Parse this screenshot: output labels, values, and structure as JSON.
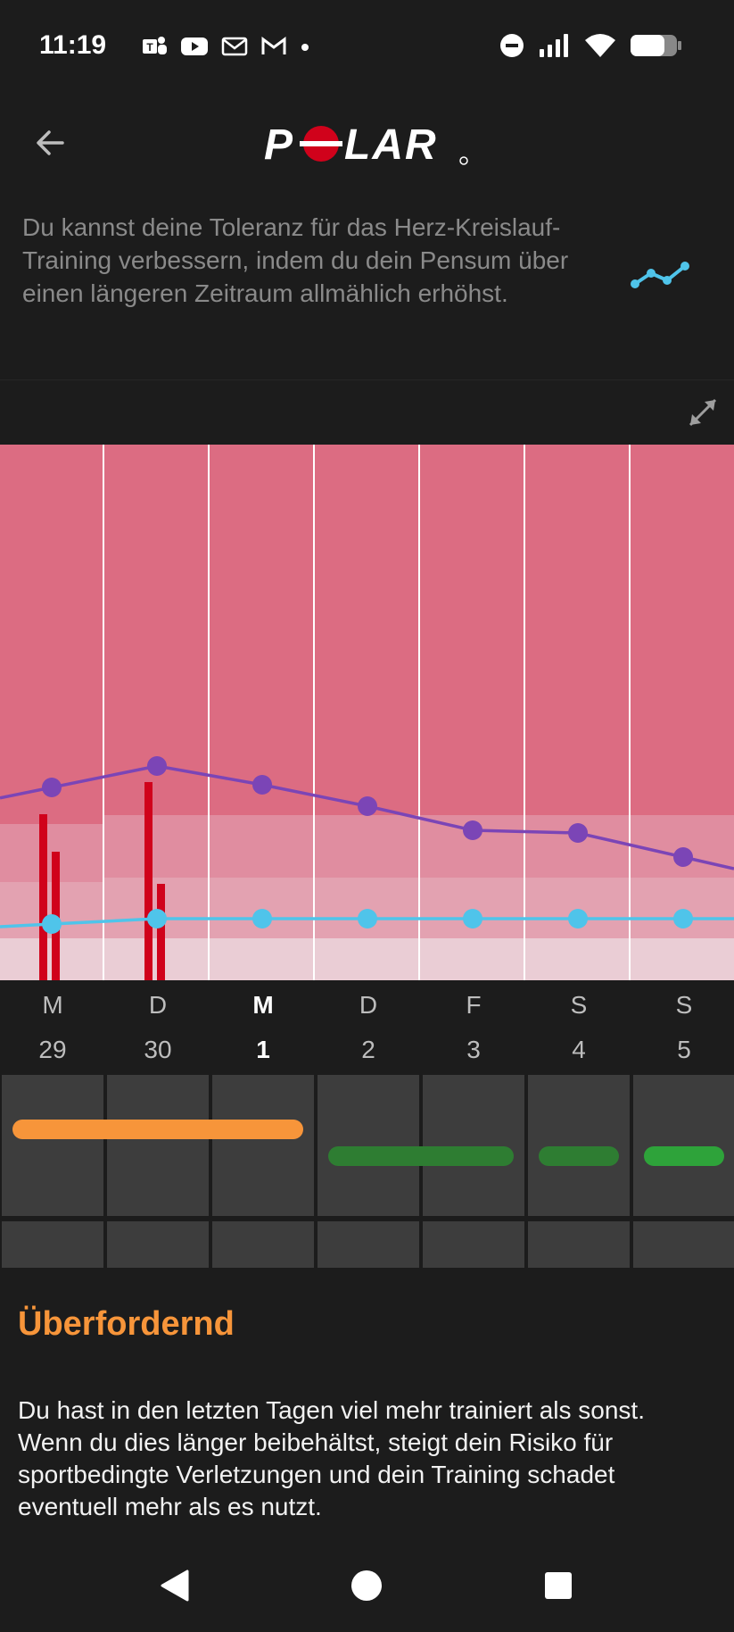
{
  "status_bar": {
    "time": "11:19",
    "left_icons": [
      "teams-icon",
      "youtube-icon",
      "mail-icon",
      "gmail-icon",
      "dot-icon"
    ],
    "right_icons": [
      "do-not-disturb-icon",
      "signal-icon",
      "wifi-icon",
      "battery-icon"
    ]
  },
  "header": {
    "logo_text": "POLAR",
    "back_icon": "arrow-left-icon"
  },
  "info": {
    "text": "Du kannst deine Toleranz für das Herz-Kreislauf-Training verbessern, indem du dein Pensum über einen längeren Zeitraum allmählich erhöhst.",
    "trend_icon": "trend-line-icon",
    "expand_icon": "expand-icon"
  },
  "colors": {
    "accent_orange": "#f7953a",
    "zone_high": "#dc6c82",
    "zone_mid": "#e08da0",
    "zone_low": "#eacdd5",
    "purple_line": "#7b45b6",
    "cyan_line": "#4fc4ea",
    "red_bars": "#d0021b",
    "bar_green_dark": "#2e7d32",
    "bar_green": "#2ea33a"
  },
  "chart_data": {
    "type": "line",
    "categories": [
      "M 29",
      "D 30",
      "M 1",
      "D 2",
      "F 3",
      "S 4",
      "S 5"
    ],
    "series": [
      {
        "values": [
          7.2,
          8.0,
          7.3,
          6.5,
          5.6,
          5.5,
          4.6
        ]
      },
      {
        "values": [
          2.1,
          2.3,
          2.3,
          2.3,
          2.3,
          2.3,
          2.3
        ]
      }
    ],
    "bars": [
      {
        "day": 0,
        "values": [
          6.2,
          4.8
        ]
      },
      {
        "day": 1,
        "values": [
          7.4,
          3.6
        ]
      }
    ],
    "ylim": [
      0,
      20
    ],
    "grid": "vertical"
  },
  "days": [
    {
      "weekday": "M",
      "date": "29",
      "current": false
    },
    {
      "weekday": "D",
      "date": "30",
      "current": false
    },
    {
      "weekday": "M",
      "date": "1",
      "current": true
    },
    {
      "weekday": "D",
      "date": "2",
      "current": false
    },
    {
      "weekday": "F",
      "date": "3",
      "current": false
    },
    {
      "weekday": "S",
      "date": "4",
      "current": false
    },
    {
      "weekday": "S",
      "date": "5",
      "current": false
    }
  ],
  "status": {
    "title": "Überfordernd",
    "description": "Du hast in den letzten Tagen viel mehr trainiert als sonst. Wenn du dies länger beibehältst, steigt dein Risiko für sportbedingte Verletzungen und dein Training schadet eventuell mehr als es nutzt."
  },
  "nav": {
    "back": "nav-back-icon",
    "home": "nav-home-icon",
    "recents": "nav-recents-icon"
  }
}
